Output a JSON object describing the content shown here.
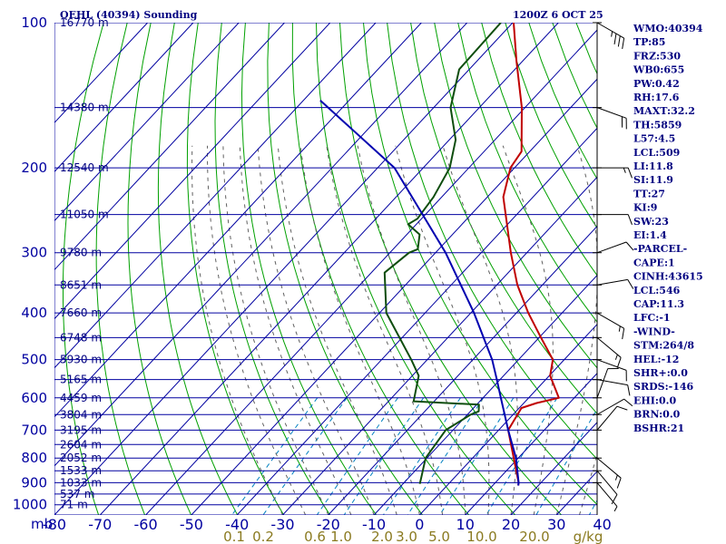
{
  "header": {
    "title": "QEHL (40394) Sounding",
    "datetime": "1200Z  6 OCT 25"
  },
  "chart_data": {
    "type": "line",
    "title": "QEHL (40394) Sounding",
    "diagram": "skew-T log-P",
    "xlabel": "",
    "ylabel": "mb",
    "pressure_ticks": [
      100,
      200,
      300,
      400,
      500,
      600,
      700,
      800,
      900,
      1000
    ],
    "temperature_ticks": [
      -80,
      -70,
      -60,
      -50,
      -40,
      -30,
      -20,
      -10,
      0,
      10,
      20,
      30,
      40
    ],
    "temperature_tick_labels": [
      "-80",
      "-70",
      "-60",
      "-50",
      "-40",
      "-30",
      "-20",
      "-10",
      "0",
      "10",
      "20",
      "30",
      "40"
    ],
    "mixing_ratio_labels": [
      "0.1",
      "0.2",
      "0.6",
      "1.0",
      "2.0",
      "3.0",
      "5.0",
      "10.0",
      "20.0",
      "g/kg"
    ],
    "height_labels": [
      {
        "p": 100,
        "label": "16770 m"
      },
      {
        "p": 150,
        "label": "14380 m"
      },
      {
        "p": 200,
        "label": "12540 m"
      },
      {
        "p": 250,
        "label": "11050 m"
      },
      {
        "p": 300,
        "label": "9780 m"
      },
      {
        "p": 350,
        "label": "8651 m"
      },
      {
        "p": 400,
        "label": "7660 m"
      },
      {
        "p": 450,
        "label": "6748 m"
      },
      {
        "p": 500,
        "label": "5930 m"
      },
      {
        "p": 550,
        "label": "5165 m"
      },
      {
        "p": 600,
        "label": "4459 m"
      },
      {
        "p": 650,
        "label": "3804 m"
      },
      {
        "p": 700,
        "label": "3195 m"
      },
      {
        "p": 750,
        "label": "2604 m"
      },
      {
        "p": 800,
        "label": "2052 m"
      },
      {
        "p": 850,
        "label": "1533 m"
      },
      {
        "p": 900,
        "label": "1033 m"
      },
      {
        "p": 950,
        "label": "537 m"
      },
      {
        "p": 1000,
        "label": "71 m"
      }
    ],
    "plim": [
      100,
      1050
    ],
    "series": [
      {
        "color": "#c00000",
        "points": [
          [
            100,
            -79.8
          ],
          [
            120,
            -71.4
          ],
          [
            150,
            -60.7
          ],
          [
            185,
            -51.8
          ],
          [
            200,
            -50.9
          ],
          [
            230,
            -46.5
          ],
          [
            300,
            -33.5
          ],
          [
            350,
            -25.5
          ],
          [
            400,
            -17.4
          ],
          [
            450,
            -9.6
          ],
          [
            500,
            -2.5
          ],
          [
            540,
            0.2
          ],
          [
            600,
            6.6
          ],
          [
            615,
            2.8
          ],
          [
            630,
            0.5
          ],
          [
            700,
            2.1
          ],
          [
            800,
            9.0
          ],
          [
            900,
            15.1
          ],
          [
            912,
            15.6
          ]
        ]
      },
      {
        "color": "#0e4d0e",
        "points": [
          [
            100,
            -82.6
          ],
          [
            125,
            -82.2
          ],
          [
            150,
            -76.3
          ],
          [
            175,
            -68.6
          ],
          [
            200,
            -64.2
          ],
          [
            230,
            -61.8
          ],
          [
            255,
            -60.9
          ],
          [
            262,
            -61.8
          ],
          [
            275,
            -57.2
          ],
          [
            295,
            -54.6
          ],
          [
            300,
            -55.8
          ],
          [
            330,
            -57.1
          ],
          [
            400,
            -48.5
          ],
          [
            500,
            -33.5
          ],
          [
            540,
            -28.6
          ],
          [
            610,
            -24.5
          ],
          [
            620,
            -9.5
          ],
          [
            640,
            -8.2
          ],
          [
            650,
            -9.3
          ],
          [
            700,
            -11.6
          ],
          [
            800,
            -10.3
          ],
          [
            880,
            -7.2
          ],
          [
            905,
            -6.3
          ]
        ]
      },
      {
        "color": "#0000b0",
        "points": [
          [
            145,
            -106.3
          ],
          [
            200,
            -76.3
          ],
          [
            300,
            -47.8
          ],
          [
            400,
            -29.3
          ],
          [
            500,
            -15.8
          ],
          [
            550,
            -10.7
          ],
          [
            600,
            -6.1
          ],
          [
            700,
            2.1
          ],
          [
            800,
            9.5
          ],
          [
            900,
            15.1
          ],
          [
            912,
            15.6
          ]
        ]
      }
    ],
    "wind_barbs": [
      {
        "p": 100,
        "dir": 300,
        "spd": 35
      },
      {
        "p": 150,
        "dir": 290,
        "spd": 20
      },
      {
        "p": 200,
        "dir": 270,
        "spd": 15
      },
      {
        "p": 250,
        "dir": 270,
        "spd": 10
      },
      {
        "p": 300,
        "dir": 250,
        "spd": 10
      },
      {
        "p": 350,
        "dir": 260,
        "spd": 10
      },
      {
        "p": 400,
        "dir": 300,
        "spd": 15
      },
      {
        "p": 450,
        "dir": 310,
        "spd": 15
      },
      {
        "p": 500,
        "dir": 290,
        "spd": 10
      },
      {
        "p": 550,
        "dir": 280,
        "spd": 10
      },
      {
        "p": 600,
        "dir": 200,
        "spd": 10
      },
      {
        "p": 650,
        "dir": 240,
        "spd": 10
      },
      {
        "p": 700,
        "dir": 220,
        "spd": 10
      },
      {
        "p": 800,
        "dir": 310,
        "spd": 15
      },
      {
        "p": 850,
        "dir": 320,
        "spd": 10
      },
      {
        "p": 900,
        "dir": 320,
        "spd": 5
      }
    ]
  },
  "indices": [
    "WMO:40394",
    "TP:85",
    "FRZ:530",
    "WB0:655",
    "PW:0.42",
    "RH:17.6",
    "MAXT:32.2",
    "TH:5859",
    "L57:4.5",
    "LCL:509",
    "LI:11.8",
    "SI:11.9",
    "TT:27",
    "KI:9",
    "SW:23",
    "EI:1.4",
    "-PARCEL-",
    "CAPE:1",
    "CINH:43615",
    "LCL:546",
    "CAP:11.3",
    "LFC:-1",
    "-WIND-",
    "STM:264/8",
    "HEL:-12",
    "SHR+:0.0",
    "SRDS:-146",
    "EHI:0.0",
    "BRN:0.0",
    "BSHR:21"
  ],
  "colors": {
    "isobar": "#0000a0",
    "isotherm": "#0000a0",
    "dry_adiabat": "#00a000",
    "moist_adiabat": "#606060",
    "mixing_ratio": "#0080c0",
    "temperature": "#c00000",
    "dewpoint": "#0e4d0e",
    "parcel": "#0000b0"
  }
}
